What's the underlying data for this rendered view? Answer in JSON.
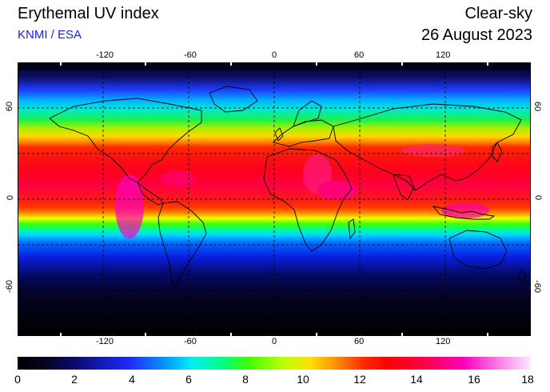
{
  "header": {
    "title": "Erythemal UV index",
    "source": "KNMI / ESA",
    "mode": "Clear-sky",
    "date": "26 August 2023"
  },
  "map": {
    "lon_ticks": [
      "-120",
      "-60",
      "0",
      "60",
      "120"
    ],
    "lat_ticks": [
      "60",
      "0",
      "-60"
    ]
  },
  "colorbar": {
    "labels": [
      "0",
      "2",
      "4",
      "6",
      "8",
      "10",
      "12",
      "14",
      "16",
      "18"
    ]
  }
}
